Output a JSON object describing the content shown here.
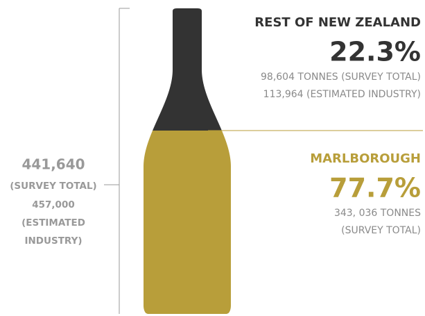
{
  "chart_data": {
    "type": "bottle",
    "total_labels": [
      "441,640",
      "(SURVEY TOTAL)",
      "457,000",
      "(ESTIMATED",
      "INDUSTRY)"
    ],
    "series": [
      {
        "name": "REST OF NEW ZEALAND",
        "color": "#333333",
        "values": [
          22.3
        ],
        "value_labels": [
          "22.3%"
        ],
        "notes": [
          "98,604 TONNES (SURVEY TOTAL)",
          "113,964 (ESTIMATED INDUSTRY)"
        ]
      },
      {
        "name": "MARLBOROUGH",
        "color": "#b89e3a",
        "values": [
          77.7
        ],
        "value_labels": [
          "77.7%"
        ],
        "notes": [
          "343, 036 TONNES",
          "(SURVEY TOTAL)"
        ]
      }
    ]
  }
}
